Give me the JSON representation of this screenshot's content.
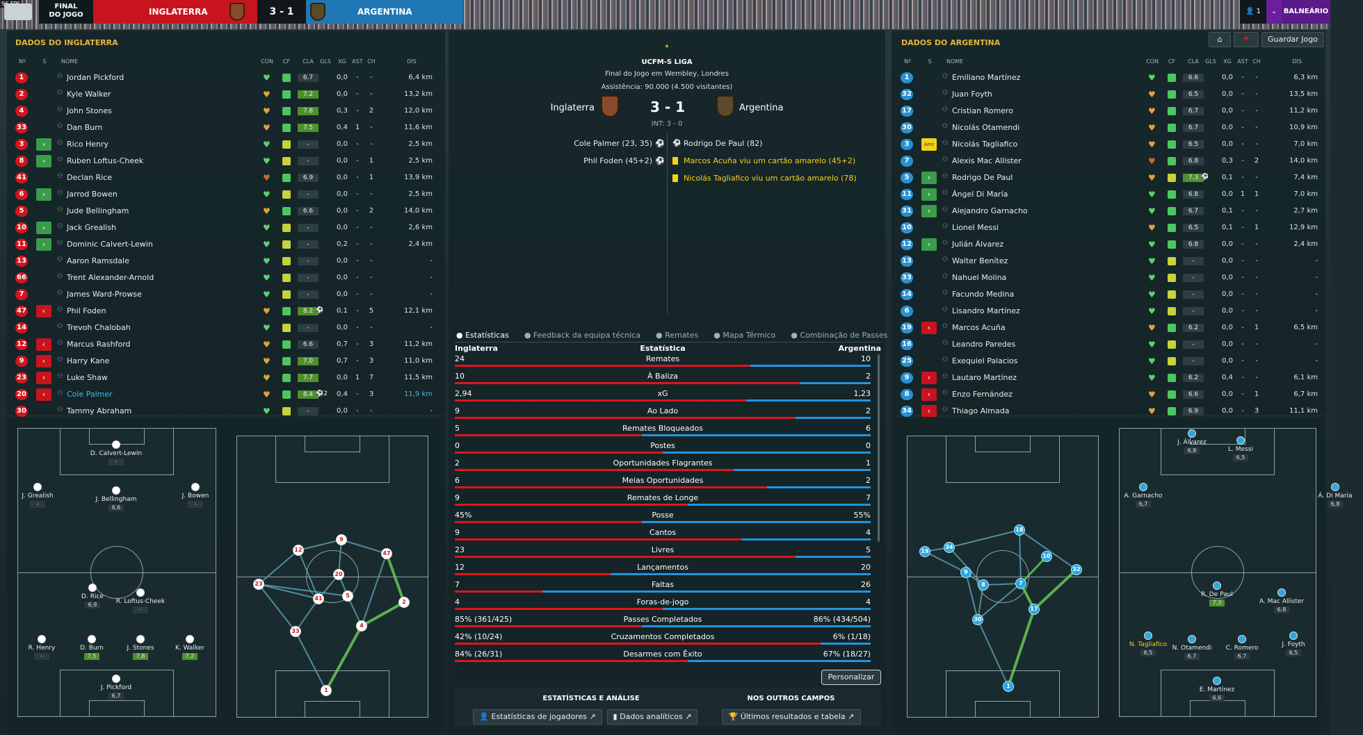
{
  "fps": "96 FPS",
  "topbar": {
    "status": "FINAL DO JOGO",
    "home": "INGLATERRA",
    "score": "3 - 1",
    "away": "ARGENTINA",
    "user": "1",
    "balneario": "BALNEÁRIO",
    "colors": {
      "home": "#c8141e",
      "away": "#1f78b5"
    }
  },
  "left": {
    "title": "DADOS DO INGLATERRA",
    "headers": [
      "Nº",
      "S",
      "NOME",
      "CON",
      "CF",
      "CLA",
      "GLS",
      "XG",
      "AST",
      "CH",
      "DIS"
    ],
    "players": [
      {
        "n": "1",
        "s": "",
        "name": "Jordan Pickford",
        "con": "g",
        "cf": "g",
        "cla": "6.7",
        "gls": "",
        "xg": "0,0",
        "ast": "-",
        "ch": "-",
        "dis": "6,4 km"
      },
      {
        "n": "2",
        "s": "",
        "name": "Kyle Walker",
        "con": "o",
        "cf": "g",
        "cla": "7.2",
        "gls": "",
        "xg": "0,0",
        "ast": "-",
        "ch": "-",
        "dis": "13,2 km"
      },
      {
        "n": "4",
        "s": "",
        "name": "John Stones",
        "con": "o",
        "cf": "g",
        "cla": "7.8",
        "gls": "",
        "xg": "0,3",
        "ast": "-",
        "ch": "2",
        "dis": "12,0 km"
      },
      {
        "n": "33",
        "s": "",
        "name": "Dan Burn",
        "con": "o",
        "cf": "g",
        "cla": "7.5",
        "gls": "",
        "xg": "0,4",
        "ast": "1",
        "ch": "-",
        "dis": "11,6 km"
      },
      {
        "n": "3",
        "s": "in",
        "name": "Rico Henry",
        "con": "g",
        "cf": "y",
        "cla": "-",
        "gls": "",
        "xg": "0,0",
        "ast": "-",
        "ch": "-",
        "dis": "2,5 km"
      },
      {
        "n": "8",
        "s": "in",
        "name": "Ruben Loftus-Cheek",
        "con": "g",
        "cf": "y",
        "cla": "-",
        "gls": "",
        "xg": "0,0",
        "ast": "-",
        "ch": "1",
        "dis": "2,5 km"
      },
      {
        "n": "41",
        "s": "",
        "name": "Declan Rice",
        "con": "r",
        "cf": "g",
        "cla": "6.9",
        "gls": "",
        "xg": "0,0",
        "ast": "-",
        "ch": "1",
        "dis": "13,9 km"
      },
      {
        "n": "6",
        "s": "in",
        "name": "Jarrod Bowen",
        "con": "g",
        "cf": "y",
        "cla": "-",
        "gls": "",
        "xg": "0,0",
        "ast": "-",
        "ch": "-",
        "dis": "2,5 km"
      },
      {
        "n": "5",
        "s": "",
        "name": "Jude Bellingham",
        "con": "o",
        "cf": "g",
        "cla": "6.6",
        "gls": "",
        "xg": "0,0",
        "ast": "-",
        "ch": "2",
        "dis": "14,0 km"
      },
      {
        "n": "10",
        "s": "in",
        "name": "Jack Grealish",
        "con": "g",
        "cf": "y",
        "cla": "-",
        "gls": "",
        "xg": "0,0",
        "ast": "-",
        "ch": "-",
        "dis": "2,6 km"
      },
      {
        "n": "11",
        "s": "in",
        "name": "Dominic Calvert-Lewin",
        "con": "g",
        "cf": "y",
        "cla": "-",
        "gls": "",
        "xg": "0,2",
        "ast": "-",
        "ch": "-",
        "dis": "2,4 km"
      },
      {
        "n": "13",
        "s": "",
        "name": "Aaron Ramsdale",
        "con": "g",
        "cf": "y",
        "cla": "-",
        "gls": "",
        "xg": "0,0",
        "ast": "-",
        "ch": "-",
        "dis": "-"
      },
      {
        "n": "66",
        "s": "",
        "name": "Trent Alexander-Arnold",
        "con": "g",
        "cf": "y",
        "cla": "-",
        "gls": "",
        "xg": "0,0",
        "ast": "-",
        "ch": "-",
        "dis": "-"
      },
      {
        "n": "7",
        "s": "",
        "name": "James Ward-Prowse",
        "con": "g",
        "cf": "y",
        "cla": "-",
        "gls": "",
        "xg": "0,0",
        "ast": "-",
        "ch": "-",
        "dis": "-"
      },
      {
        "n": "47",
        "s": "out",
        "name": "Phil Foden",
        "con": "o",
        "cf": "g",
        "cla": "8.2",
        "gls": "⚽",
        "xg": "0,1",
        "ast": "-",
        "ch": "5",
        "dis": "12,1 km"
      },
      {
        "n": "14",
        "s": "",
        "name": "Trevoh Chalobah",
        "con": "g",
        "cf": "y",
        "cla": "-",
        "gls": "",
        "xg": "0,0",
        "ast": "-",
        "ch": "-",
        "dis": "-"
      },
      {
        "n": "12",
        "s": "out",
        "name": "Marcus Rashford",
        "con": "o",
        "cf": "g",
        "cla": "6.6",
        "gls": "",
        "xg": "0,7",
        "ast": "-",
        "ch": "3",
        "dis": "11,2 km"
      },
      {
        "n": "9",
        "s": "out",
        "name": "Harry Kane",
        "con": "o",
        "cf": "g",
        "cla": "7.0",
        "gls": "",
        "xg": "0,7",
        "ast": "-",
        "ch": "3",
        "dis": "11,0 km"
      },
      {
        "n": "23",
        "s": "out",
        "name": "Luke Shaw",
        "con": "o",
        "cf": "g",
        "cla": "7.7",
        "gls": "",
        "xg": "0,0",
        "ast": "1",
        "ch": "7",
        "dis": "11,5 km"
      },
      {
        "n": "20",
        "s": "out",
        "name": "Cole Palmer",
        "con": "o",
        "cf": "g",
        "cla": "8.4",
        "gls": "⚽2",
        "xg": "0,4",
        "ast": "-",
        "ch": "3",
        "dis": "11,9 km"
      },
      {
        "n": "30",
        "s": "",
        "name": "Tammy Abraham",
        "con": "g",
        "cf": "y",
        "cla": "-",
        "gls": "",
        "xg": "0,0",
        "ast": "-",
        "ch": "-",
        "dis": "-"
      }
    ]
  },
  "right": {
    "title": "DADOS DO ARGENTINA",
    "save": "Guardar Jogo",
    "headers": [
      "Nº",
      "S",
      "NOME",
      "CON",
      "CF",
      "CLA",
      "GLS",
      "XG",
      "AST",
      "CH",
      "DIS"
    ],
    "players": [
      {
        "n": "1",
        "s": "",
        "name": "Emiliano Martínez",
        "con": "g",
        "cf": "g",
        "cla": "6.6",
        "gls": "",
        "xg": "0,0",
        "ast": "-",
        "ch": "-",
        "dis": "6,3 km"
      },
      {
        "n": "32",
        "s": "",
        "name": "Juan Foyth",
        "con": "o",
        "cf": "g",
        "cla": "6.5",
        "gls": "",
        "xg": "0,0",
        "ast": "-",
        "ch": "-",
        "dis": "13,5 km"
      },
      {
        "n": "17",
        "s": "",
        "name": "Cristian Romero",
        "con": "o",
        "cf": "g",
        "cla": "6.7",
        "gls": "",
        "xg": "0,0",
        "ast": "-",
        "ch": "-",
        "dis": "11,2 km"
      },
      {
        "n": "30",
        "s": "",
        "name": "Nicolás Otamendi",
        "con": "o",
        "cf": "g",
        "cla": "6.7",
        "gls": "",
        "xg": "0,0",
        "ast": "-",
        "ch": "-",
        "dis": "10,9 km"
      },
      {
        "n": "3",
        "s": "amr",
        "name": "Nicolás Tagliafico",
        "con": "o",
        "cf": "g",
        "cla": "6.5",
        "gls": "",
        "xg": "0,0",
        "ast": "-",
        "ch": "-",
        "dis": "7,0 km"
      },
      {
        "n": "7",
        "s": "",
        "name": "Alexis Mac Allister",
        "con": "r",
        "cf": "g",
        "cla": "6.8",
        "gls": "",
        "xg": "0,3",
        "ast": "-",
        "ch": "2",
        "dis": "14,0 km"
      },
      {
        "n": "5",
        "s": "in",
        "name": "Rodrigo De Paul",
        "con": "o",
        "cf": "y",
        "cla": "7.3",
        "gls": "⚽",
        "xg": "0,1",
        "ast": "-",
        "ch": "-",
        "dis": "7,4 km"
      },
      {
        "n": "11",
        "s": "in",
        "name": "Ángel Di María",
        "con": "g",
        "cf": "g",
        "cla": "6.8",
        "gls": "",
        "xg": "0,0",
        "ast": "1",
        "ch": "1",
        "dis": "7,0 km"
      },
      {
        "n": "31",
        "s": "in",
        "name": "Alejandro Garnacho",
        "con": "g",
        "cf": "g",
        "cla": "6.7",
        "gls": "",
        "xg": "0,1",
        "ast": "-",
        "ch": "-",
        "dis": "2,7 km"
      },
      {
        "n": "10",
        "s": "",
        "name": "Lionel Messi",
        "con": "o",
        "cf": "g",
        "cla": "6.5",
        "gls": "",
        "xg": "0,1",
        "ast": "-",
        "ch": "1",
        "dis": "12,9 km"
      },
      {
        "n": "12",
        "s": "in",
        "name": "Julián Álvarez",
        "con": "g",
        "cf": "g",
        "cla": "6.8",
        "gls": "",
        "xg": "0,0",
        "ast": "-",
        "ch": "-",
        "dis": "2,4 km"
      },
      {
        "n": "13",
        "s": "",
        "name": "Walter Benítez",
        "con": "g",
        "cf": "y",
        "cla": "-",
        "gls": "",
        "xg": "0,0",
        "ast": "-",
        "ch": "-",
        "dis": "-"
      },
      {
        "n": "33",
        "s": "",
        "name": "Nahuel Molina",
        "con": "g",
        "cf": "y",
        "cla": "-",
        "gls": "",
        "xg": "0,0",
        "ast": "-",
        "ch": "-",
        "dis": "-"
      },
      {
        "n": "14",
        "s": "",
        "name": "Facundo Medina",
        "con": "g",
        "cf": "y",
        "cla": "-",
        "gls": "",
        "xg": "0,0",
        "ast": "-",
        "ch": "-",
        "dis": "-"
      },
      {
        "n": "6",
        "s": "",
        "name": "Lisandro Martínez",
        "con": "g",
        "cf": "y",
        "cla": "-",
        "gls": "",
        "xg": "0,0",
        "ast": "-",
        "ch": "-",
        "dis": "-"
      },
      {
        "n": "19",
        "s": "out",
        "name": "Marcos Acuña",
        "con": "o",
        "cf": "g",
        "cla": "6.2",
        "gls": "",
        "xg": "0,0",
        "ast": "-",
        "ch": "1",
        "dis": "6,5 km"
      },
      {
        "n": "16",
        "s": "",
        "name": "Leandro Paredes",
        "con": "g",
        "cf": "y",
        "cla": "-",
        "gls": "",
        "xg": "0,0",
        "ast": "-",
        "ch": "-",
        "dis": "-"
      },
      {
        "n": "25",
        "s": "",
        "name": "Exequiel Palacios",
        "con": "g",
        "cf": "y",
        "cla": "-",
        "gls": "",
        "xg": "0,0",
        "ast": "-",
        "ch": "-",
        "dis": "-"
      },
      {
        "n": "9",
        "s": "out",
        "name": "Lautaro Martínez",
        "con": "g",
        "cf": "g",
        "cla": "6.2",
        "gls": "",
        "xg": "0,4",
        "ast": "-",
        "ch": "-",
        "dis": "6,1 km"
      },
      {
        "n": "8",
        "s": "out",
        "name": "Enzo Fernández",
        "con": "o",
        "cf": "g",
        "cla": "6.6",
        "gls": "",
        "xg": "0,0",
        "ast": "-",
        "ch": "1",
        "dis": "6,7 km"
      },
      {
        "n": "34",
        "s": "out",
        "name": "Thiago Almada",
        "con": "o",
        "cf": "g",
        "cla": "6.9",
        "gls": "",
        "xg": "0,0",
        "ast": "-",
        "ch": "3",
        "dis": "11,1 km"
      }
    ]
  },
  "match": {
    "league": "UCFM-S LIGA",
    "venue": "Final do Jogo em Wembley, Londres",
    "attendance": "Assistência: 90.000 (4.500 visitantes)",
    "home": "Inglaterra",
    "score": "3 - 1",
    "away": "Argentina",
    "ht": "INT: 3 - 0",
    "home_events": [
      "Cole Palmer (23, 35)",
      "Phil Foden (45+2)"
    ],
    "away_events": [
      "Rodrigo De Paul (82)",
      "Marcos Acuña viu um cartão amarelo (45+2)",
      "Nicolás Tagliafico viu um cartão amarelo (78)"
    ]
  },
  "tabs": [
    "Estatísticas",
    "Feedback da equipa técnica",
    "Remates",
    "Mapa Térmico",
    "Combinação de Passes"
  ],
  "stats_head": {
    "home": "Inglaterra",
    "mid": "Estatística",
    "away": "Argentina"
  },
  "stats": [
    {
      "label": "Remates",
      "home": "24",
      "away": "10",
      "hp": 0.71
    },
    {
      "label": "À Baliza",
      "home": "10",
      "away": "2",
      "hp": 0.83
    },
    {
      "label": "xG",
      "home": "2,94",
      "away": "1,23",
      "hp": 0.7
    },
    {
      "label": "Ao Lado",
      "home": "9",
      "away": "2",
      "hp": 0.82
    },
    {
      "label": "Remates Bloqueados",
      "home": "5",
      "away": "6",
      "hp": 0.45
    },
    {
      "label": "Postes",
      "home": "0",
      "away": "0",
      "hp": 0.5
    },
    {
      "label": "Oportunidades Flagrantes",
      "home": "2",
      "away": "1",
      "hp": 0.67
    },
    {
      "label": "Meias Oportunidades",
      "home": "6",
      "away": "2",
      "hp": 0.75
    },
    {
      "label": "Remates de Longe",
      "home": "9",
      "away": "7",
      "hp": 0.56
    },
    {
      "label": "Posse",
      "home": "45%",
      "away": "55%",
      "hp": 0.45
    },
    {
      "label": "Cantos",
      "home": "9",
      "away": "4",
      "hp": 0.69
    },
    {
      "label": "Livres",
      "home": "23",
      "away": "5",
      "hp": 0.82
    },
    {
      "label": "Lançamentos",
      "home": "12",
      "away": "20",
      "hp": 0.375
    },
    {
      "label": "Faltas",
      "home": "7",
      "away": "26",
      "hp": 0.21
    },
    {
      "label": "Foras-de-jogo",
      "home": "4",
      "away": "4",
      "hp": 0.5
    },
    {
      "label": "Passes Completados",
      "home": "85% (361/425)",
      "away": "86% (434/504)",
      "hp": 0.45
    },
    {
      "label": "Cruzamentos Completados",
      "home": "42% (10/24)",
      "away": "6% (1/18)",
      "hp": 0.88
    },
    {
      "label": "Desarmes com Êxito",
      "home": "84% (26/31)",
      "away": "67% (18/27)",
      "hp": 0.56
    }
  ],
  "personalizar": "Personalizar",
  "bottom": {
    "h1": "ESTATÍSTICAS E ANÁLISE",
    "h2": "NOS OUTROS CAMPOS",
    "b1": "Estatísticas de jogadores",
    "b2": "Dados analíticos",
    "b3": "Últimos resultados e tabela"
  },
  "eng_form": [
    {
      "name": "D. Calvert-Lewin",
      "rat": "-"
    },
    {
      "name": "J. Grealish",
      "rat": "-"
    },
    {
      "name": "J. Bellingham",
      "rat": "6,6"
    },
    {
      "name": "J. Bowen",
      "rat": "-"
    },
    {
      "name": "D. Rice",
      "rat": "6,9"
    },
    {
      "name": "R. Loftus-Cheek",
      "rat": "-"
    },
    {
      "name": "R. Henry",
      "rat": "-"
    },
    {
      "name": "D. Burn",
      "rat": "7,5"
    },
    {
      "name": "J. Stones",
      "rat": "7,8"
    },
    {
      "name": "K. Walker",
      "rat": "7,2"
    },
    {
      "name": "J. Pickford",
      "rat": "6,7"
    }
  ],
  "arg_form": [
    {
      "name": "J. Álvarez",
      "rat": "6,8"
    },
    {
      "name": "L. Messi",
      "rat": "6,5"
    },
    {
      "name": "A. Garnacho",
      "rat": "6,7"
    },
    {
      "name": "Á. Di María",
      "rat": "6,8"
    },
    {
      "name": "R. De Paul",
      "rat": "7,3"
    },
    {
      "name": "A. Mac Allister",
      "rat": "6,8"
    },
    {
      "name": "N. Tagliafico",
      "rat": "6,5"
    },
    {
      "name": "N. Otamendi",
      "rat": "6,7"
    },
    {
      "name": "C. Romero",
      "rat": "6,7"
    },
    {
      "name": "J. Foyth",
      "rat": "6,5"
    },
    {
      "name": "E. Martínez",
      "rat": "6,6"
    }
  ],
  "eng_net": [
    "12",
    "9",
    "47",
    "23",
    "20",
    "41",
    "5",
    "2",
    "4",
    "33",
    "1"
  ],
  "arg_net": [
    "18",
    "34",
    "19",
    "9",
    "10",
    "8",
    "7",
    "32",
    "30",
    "17",
    "1"
  ]
}
